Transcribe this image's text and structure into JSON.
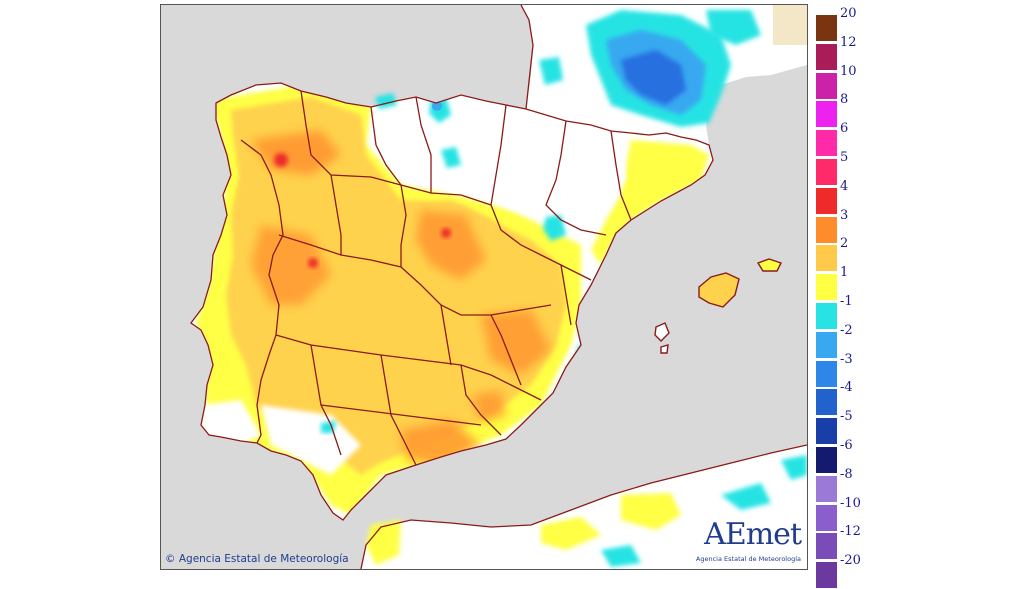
{
  "map": {
    "copyright": "Agencia Estatal de Meteorología",
    "logo": {
      "word": "AEmet",
      "subtitle": "Agencia Estatal de Meteorología"
    },
    "colors": {
      "sea": "#d9d9d9",
      "land": "#ffffff",
      "border": "#8b1a1a",
      "plus1": "#ffff44",
      "plus2": "#ffd24d",
      "plus3": "#ff9933",
      "plus4": "#ee2a2a",
      "minus1": "#27e3e3",
      "minus2": "#38a8f0",
      "minus3": "#2770e0"
    }
  },
  "legend": {
    "positive": [
      {
        "label": "20",
        "color": "#7a3410"
      },
      {
        "label": "12",
        "color": "#aa1c58"
      },
      {
        "label": "10",
        "color": "#cc22aa"
      },
      {
        "label": "8",
        "color": "#ee22ee"
      },
      {
        "label": "6",
        "color": "#ff2aa8"
      },
      {
        "label": "5",
        "color": "#ff2a6a"
      },
      {
        "label": "4",
        "color": "#ee2a2a"
      },
      {
        "label": "3",
        "color": "#ff8c2a"
      },
      {
        "label": "2",
        "color": "#ffc94a"
      },
      {
        "label": "1",
        "color": "#ffff44"
      }
    ],
    "negative": [
      {
        "label": "-1",
        "color": "#27e3e3"
      },
      {
        "label": "-2",
        "color": "#38a8f0"
      },
      {
        "label": "-3",
        "color": "#2e86e8"
      },
      {
        "label": "-4",
        "color": "#2262cc"
      },
      {
        "label": "-5",
        "color": "#1a3ea8"
      },
      {
        "label": "-6",
        "color": "#141a6e"
      },
      {
        "label": "-8",
        "color": "#9a7ad6"
      },
      {
        "label": "-10",
        "color": "#8a5ecc"
      },
      {
        "label": "-12",
        "color": "#7a4cb8"
      },
      {
        "label": "-20",
        "color": "#6c3a9e"
      }
    ]
  }
}
